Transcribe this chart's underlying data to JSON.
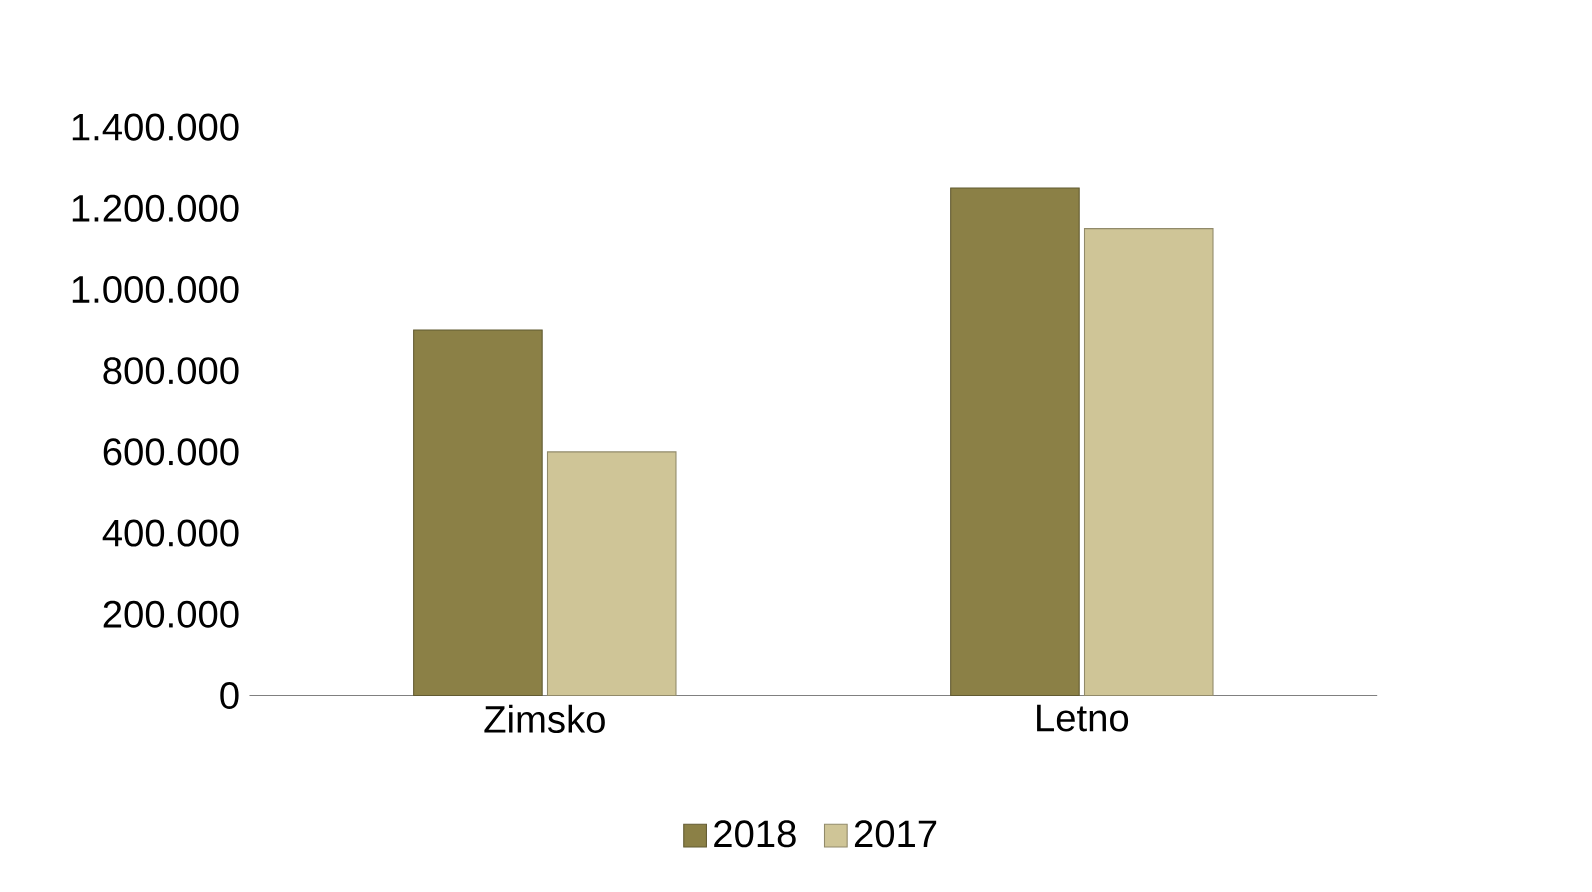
{
  "chart_data": {
    "type": "bar",
    "categories": [
      "Zimsko",
      "Letno"
    ],
    "series": [
      {
        "name": "2018",
        "color": "#8b8046",
        "values": [
          900000,
          1250000
        ]
      },
      {
        "name": "2017",
        "color": "#cfc597",
        "values": [
          600000,
          1150000
        ]
      }
    ],
    "ylim": [
      0,
      1400000
    ],
    "yticks": [
      0,
      {
        "value": 200000,
        "label": "200.000"
      },
      {
        "value": 400000,
        "label": "400.000"
      },
      {
        "value": 600000,
        "label": "600.000"
      },
      {
        "value": 800000,
        "label": "800.000"
      },
      {
        "value": 1000000,
        "label": "1.000.000"
      },
      {
        "value": 1200000,
        "label": "1.200.000"
      },
      {
        "value": 1400000,
        "label": "1.400.000"
      }
    ],
    "grid": false,
    "legend": "bottom"
  }
}
